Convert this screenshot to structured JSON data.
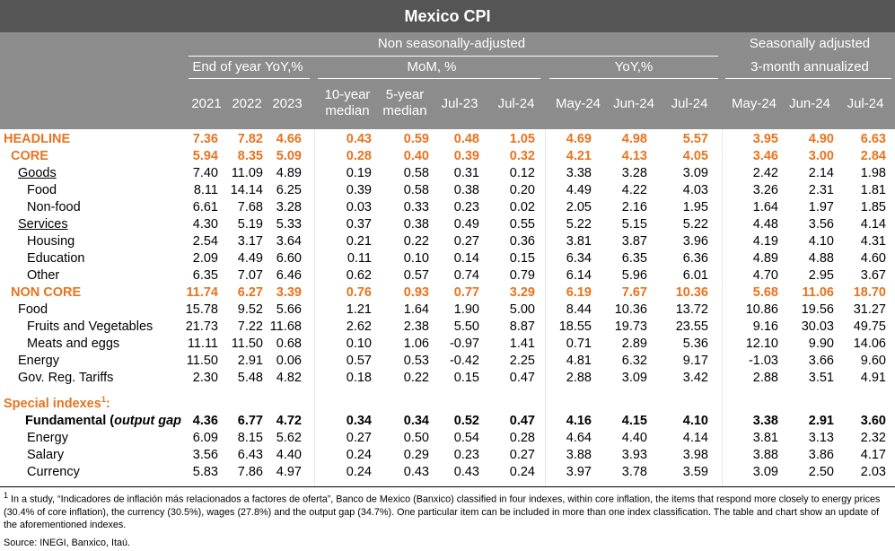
{
  "title": "Mexico CPI",
  "header": {
    "nsa_label": "Non seasonally-adjusted",
    "sa_label": "Seasonally adjusted",
    "sa_sub": "3-month annualized",
    "group_eoy": "End of year YoY,%",
    "group_mom": "MoM, %",
    "group_yoy": "YoY,%",
    "cols": [
      "2021",
      "2022",
      "2023",
      "10-year median",
      "5-year median",
      "Jul-23",
      "Jul-24",
      "May-24",
      "Jun-24",
      "Jul-24",
      "May-24",
      "Jun-24",
      "Jul-24"
    ],
    "col10_line1": "10-year",
    "col10_line2": "median",
    "col5_line1": "5-year",
    "col5_line2": "median"
  },
  "rows": [
    {
      "label": "HEADLINE",
      "values": [
        "7.36",
        "7.82",
        "4.66",
        "0.43",
        "0.59",
        "0.48",
        "1.05",
        "4.69",
        "4.98",
        "5.57",
        "3.95",
        "4.90",
        "6.63"
      ]
    },
    {
      "label": "CORE",
      "values": [
        "5.94",
        "8.35",
        "5.09",
        "0.28",
        "0.40",
        "0.39",
        "0.32",
        "4.21",
        "4.13",
        "4.05",
        "3.46",
        "3.00",
        "2.84"
      ]
    },
    {
      "label": "Goods",
      "values": [
        "7.40",
        "11.09",
        "4.89",
        "0.19",
        "0.58",
        "0.31",
        "0.12",
        "3.38",
        "3.28",
        "3.09",
        "2.42",
        "2.14",
        "1.98"
      ]
    },
    {
      "label": "Food",
      "values": [
        "8.11",
        "14.14",
        "6.25",
        "0.39",
        "0.58",
        "0.38",
        "0.20",
        "4.49",
        "4.22",
        "4.03",
        "3.26",
        "2.31",
        "1.81"
      ]
    },
    {
      "label": "Non-food",
      "values": [
        "6.61",
        "7.68",
        "3.28",
        "0.03",
        "0.33",
        "0.23",
        "0.02",
        "2.05",
        "2.16",
        "1.95",
        "1.64",
        "1.97",
        "1.85"
      ]
    },
    {
      "label": "Services",
      "values": [
        "4.30",
        "5.19",
        "5.33",
        "0.37",
        "0.38",
        "0.49",
        "0.55",
        "5.22",
        "5.15",
        "5.22",
        "4.48",
        "3.56",
        "4.14"
      ]
    },
    {
      "label": "Housing",
      "values": [
        "2.54",
        "3.17",
        "3.64",
        "0.21",
        "0.22",
        "0.27",
        "0.36",
        "3.81",
        "3.87",
        "3.96",
        "4.19",
        "4.10",
        "4.31"
      ]
    },
    {
      "label": "Education",
      "values": [
        "2.09",
        "4.49",
        "6.60",
        "0.11",
        "0.10",
        "0.14",
        "0.15",
        "6.34",
        "6.35",
        "6.36",
        "4.89",
        "4.88",
        "4.60"
      ]
    },
    {
      "label": "Other",
      "values": [
        "6.35",
        "7.07",
        "6.46",
        "0.62",
        "0.57",
        "0.74",
        "0.79",
        "6.14",
        "5.96",
        "6.01",
        "4.70",
        "2.95",
        "3.67"
      ]
    },
    {
      "label": "NON CORE",
      "values": [
        "11.74",
        "6.27",
        "3.39",
        "0.76",
        "0.93",
        "0.77",
        "3.29",
        "6.19",
        "7.67",
        "10.36",
        "5.68",
        "11.06",
        "18.70"
      ]
    },
    {
      "label": "Food",
      "values": [
        "15.78",
        "9.52",
        "5.66",
        "1.21",
        "1.64",
        "1.90",
        "5.00",
        "8.44",
        "10.36",
        "13.72",
        "10.86",
        "19.56",
        "31.27"
      ]
    },
    {
      "label": "Fruits and Vegetables",
      "values": [
        "21.73",
        "7.22",
        "11.68",
        "2.62",
        "2.38",
        "5.50",
        "8.87",
        "18.55",
        "19.73",
        "23.55",
        "9.16",
        "30.03",
        "49.75"
      ]
    },
    {
      "label": "Meats and eggs",
      "values": [
        "11.11",
        "11.50",
        "0.68",
        "0.10",
        "1.06",
        "-0.97",
        "1.41",
        "0.71",
        "2.89",
        "5.36",
        "12.10",
        "9.90",
        "14.06"
      ]
    },
    {
      "label": "Energy",
      "values": [
        "11.50",
        "2.91",
        "0.06",
        "0.57",
        "0.53",
        "-0.42",
        "2.25",
        "4.81",
        "6.32",
        "9.17",
        "-1.03",
        "3.66",
        "9.60"
      ]
    },
    {
      "label": "Gov. Reg. Tariffs",
      "values": [
        "2.30",
        "5.48",
        "4.82",
        "0.18",
        "0.22",
        "0.15",
        "0.47",
        "2.88",
        "3.09",
        "3.42",
        "2.88",
        "3.51",
        "4.91"
      ]
    },
    {
      "label": "Special indexes",
      "sup": "1",
      "suffix": ":",
      "values": []
    },
    {
      "label": "Fundamental (",
      "label_italic": "output gap",
      "values": [
        "4.36",
        "6.77",
        "4.72",
        "0.34",
        "0.34",
        "0.52",
        "0.47",
        "4.16",
        "4.15",
        "4.10",
        "3.38",
        "2.91",
        "3.60"
      ]
    },
    {
      "label": "Energy",
      "values": [
        "6.09",
        "8.15",
        "5.62",
        "0.27",
        "0.50",
        "0.54",
        "0.28",
        "4.64",
        "4.40",
        "4.14",
        "3.81",
        "3.13",
        "2.32"
      ]
    },
    {
      "label": "Salary",
      "values": [
        "3.56",
        "6.43",
        "4.40",
        "0.24",
        "0.29",
        "0.23",
        "0.27",
        "3.88",
        "3.93",
        "3.98",
        "3.88",
        "3.86",
        "4.17"
      ]
    },
    {
      "label": "Currency",
      "values": [
        "5.83",
        "7.86",
        "4.97",
        "0.24",
        "0.43",
        "0.43",
        "0.24",
        "3.97",
        "3.78",
        "3.59",
        "3.09",
        "2.50",
        "2.03"
      ]
    }
  ],
  "footnote": {
    "sup": "1",
    "text": "In a study, “Indicadores de inflación más relacionados a factores de oferta”, Banco de Mexico (Banxico) classified in four indexes, within core inflation, the items that respond more closely to energy prices (30.4% of core inflation), the currency (30.5%), wages (27.8%) and the output gap (34.7%). One particular item can be included in more than one index classification. The table and chart show an update of the aforementioned indexes.",
    "source": "Source: INEGI, Banxico, Itaú."
  },
  "colors": {
    "title_bg": "#555555",
    "header_bg": "#8c8c8c",
    "accent": "#e8731e"
  }
}
